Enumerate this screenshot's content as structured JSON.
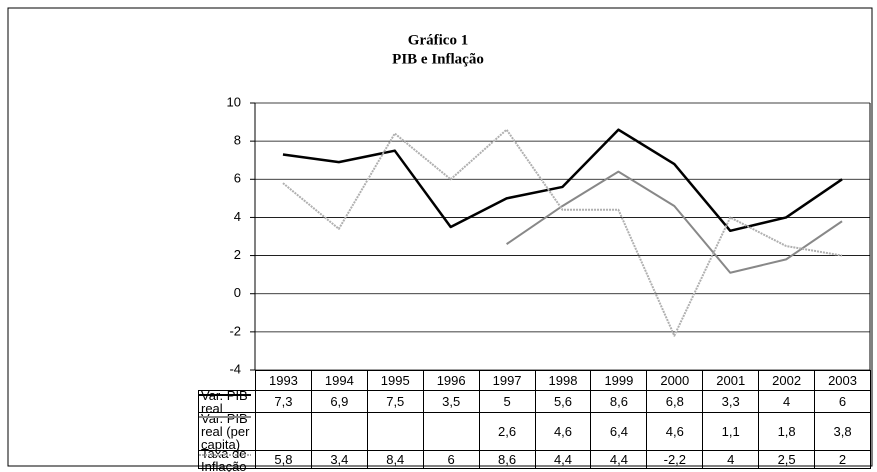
{
  "chart_data": {
    "type": "line",
    "title": "Gráfico 1",
    "subtitle": "PIB e Inflação",
    "categories": [
      "1993",
      "1994",
      "1995",
      "1996",
      "1997",
      "1998",
      "1999",
      "2000",
      "2001",
      "2002",
      "2003"
    ],
    "ylim": [
      -4,
      10
    ],
    "yticks": [
      -4,
      -2,
      0,
      2,
      4,
      6,
      8,
      10
    ],
    "grid": true,
    "series": [
      {
        "name": "Var. PIB real",
        "color": "#000000",
        "dash": "solid",
        "values": [
          7.3,
          6.9,
          7.5,
          3.5,
          5,
          5.6,
          8.6,
          6.8,
          3.3,
          4,
          6
        ],
        "value_labels": [
          "7,3",
          "6,9",
          "7,5",
          "3,5",
          "5",
          "5,6",
          "8,6",
          "6,8",
          "3,3",
          "4",
          "6"
        ]
      },
      {
        "name": "Var. PIB real (per capita)",
        "color": "#888888",
        "dash": "solid",
        "values": [
          null,
          null,
          null,
          null,
          2.6,
          4.6,
          6.4,
          4.6,
          1.1,
          1.8,
          3.8
        ],
        "value_labels": [
          null,
          null,
          null,
          null,
          "2,6",
          "4,6",
          "6,4",
          "4,6",
          "1,1",
          "1,8",
          "3,8"
        ]
      },
      {
        "name": "Taxa de Inflação",
        "color": "#b0b0b0",
        "dash": "dotted",
        "values": [
          5.8,
          3.4,
          8.4,
          6,
          8.6,
          4.4,
          4.4,
          -2.2,
          4,
          2.5,
          2
        ],
        "value_labels": [
          "5,8",
          "3,4",
          "8,4",
          "6",
          "8,6",
          "4,4",
          "4,4",
          "-2,2",
          "4",
          "2,5",
          "2"
        ]
      }
    ]
  }
}
